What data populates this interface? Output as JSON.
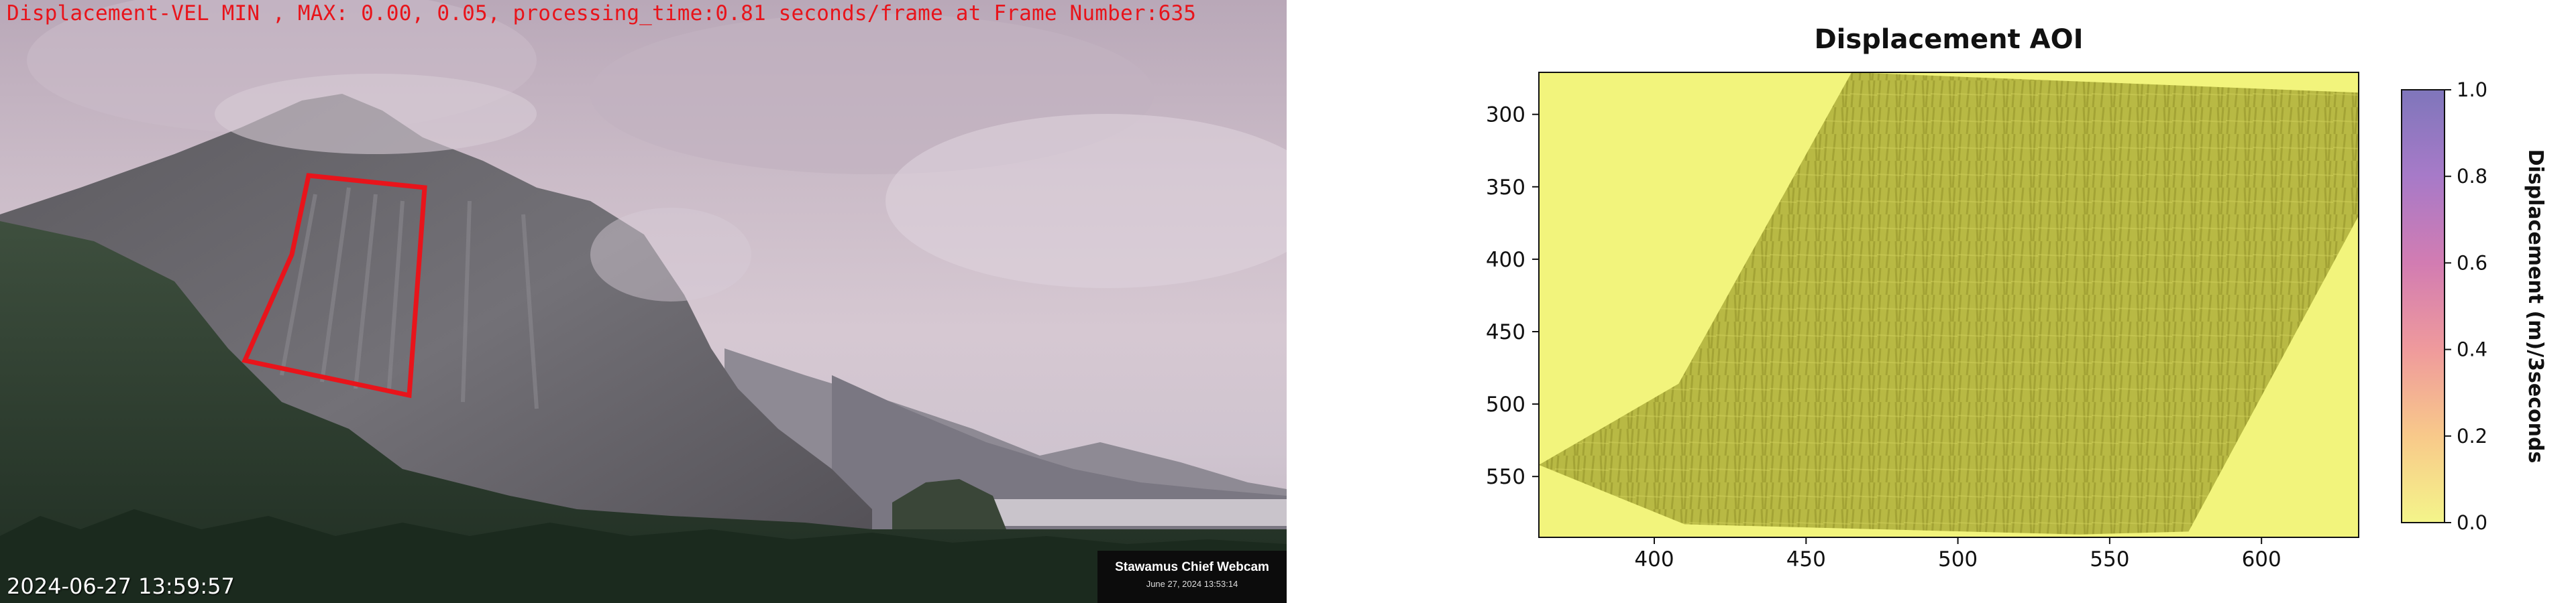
{
  "webcam": {
    "overlay_title": "Displacement-VEL MIN , MAX: 0.00, 0.05, processing_time:0.81 seconds/frame at Frame Number:635",
    "timestamp": "2024-06-27 13:59:57",
    "camera_name": "Stawamus Chief Webcam",
    "camera_date": "June 27, 2024 13:53:14",
    "roi_color": "#e8141b"
  },
  "chart_data": {
    "type": "heatmap",
    "title": "Displacement AOI",
    "xlabel": "",
    "ylabel": "",
    "xlim": [
      362,
      632
    ],
    "ylim": [
      592,
      271
    ],
    "x_ticks": [
      "400",
      "450",
      "500",
      "550",
      "600"
    ],
    "x_tick_values": [
      400,
      450,
      500,
      550,
      600
    ],
    "y_ticks": [
      "300",
      "350",
      "400",
      "450",
      "500",
      "550"
    ],
    "y_tick_values": [
      300,
      350,
      400,
      450,
      500,
      550
    ],
    "displacement_range": [
      0.0,
      0.05
    ],
    "colorbar": {
      "label": "Displacement (m)/3seconds",
      "ticks": [
        "0.0",
        "0.2",
        "0.4",
        "0.6",
        "0.8",
        "1.0"
      ],
      "tick_values": [
        0.0,
        0.2,
        0.4,
        0.6,
        0.8,
        1.0
      ],
      "colormap": "plasma_r",
      "alpha": 0.6
    },
    "grid": false
  }
}
